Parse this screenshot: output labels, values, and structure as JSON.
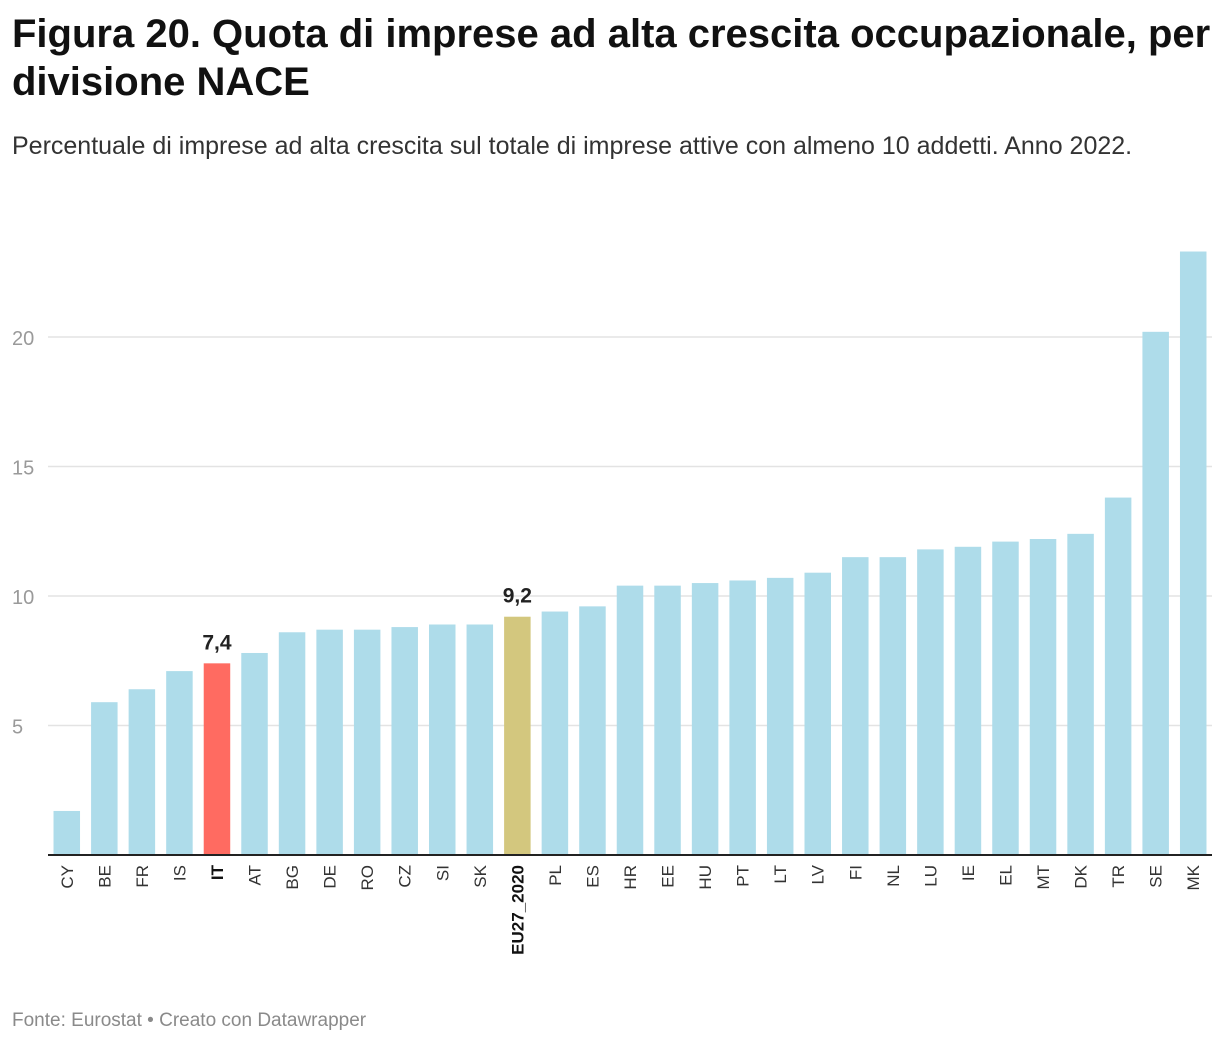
{
  "header": {
    "title": "Figura 20. Quota di imprese ad alta crescita occupazionale, per divisione NACE",
    "subtitle": "Percentuale di imprese ad alta crescita sul totale di imprese attive con almeno 10 addetti. Anno 2022."
  },
  "footer": {
    "source": "Fonte: Eurostat • Creato con Datawrapper"
  },
  "colors": {
    "default": "#aedcea",
    "IT": "#ff6b61",
    "EU27_2020": "#d3c77e",
    "grid": "#e3e3e3",
    "axis": "#222222"
  },
  "chart_data": {
    "type": "bar",
    "title": "Figura 20. Quota di imprese ad alta crescita occupazionale, per divisione NACE",
    "xlabel": "",
    "ylabel": "",
    "ylim": [
      0,
      23.5
    ],
    "yticks": [
      5,
      10,
      15,
      20
    ],
    "grid": true,
    "categories": [
      "CY",
      "BE",
      "FR",
      "IS",
      "IT",
      "AT",
      "BG",
      "DE",
      "RO",
      "CZ",
      "SI",
      "SK",
      "EU27_2020",
      "PL",
      "ES",
      "HR",
      "EE",
      "HU",
      "PT",
      "LT",
      "LV",
      "FI",
      "NL",
      "LU",
      "IE",
      "EL",
      "MT",
      "DK",
      "TR",
      "SE",
      "MK"
    ],
    "values": [
      1.7,
      5.9,
      6.4,
      7.1,
      7.4,
      7.8,
      8.6,
      8.7,
      8.7,
      8.8,
      8.9,
      8.9,
      9.2,
      9.4,
      9.6,
      10.4,
      10.4,
      10.5,
      10.6,
      10.7,
      10.9,
      11.5,
      11.5,
      11.8,
      11.9,
      12.1,
      12.2,
      12.4,
      13.8,
      20.2,
      23.3
    ],
    "highlighted": [
      "IT",
      "EU27_2020"
    ],
    "data_labels": [
      {
        "category": "IT",
        "text": "7,4"
      },
      {
        "category": "EU27_2020",
        "text": "9,2"
      }
    ]
  }
}
